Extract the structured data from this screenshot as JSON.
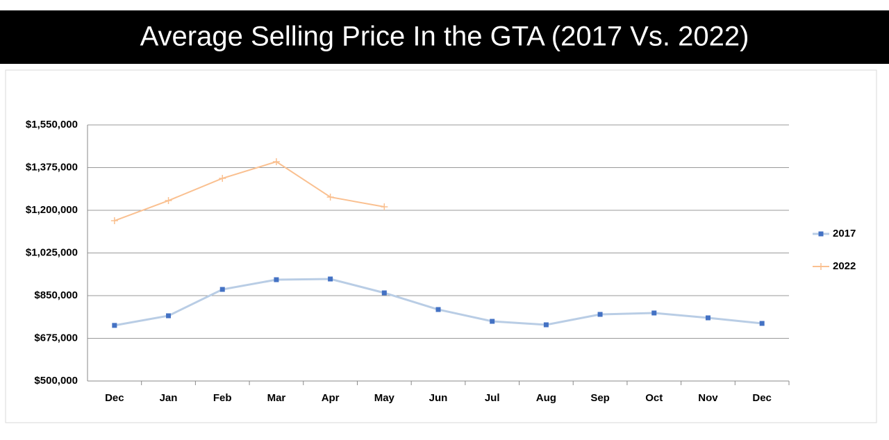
{
  "chart_data": {
    "type": "line",
    "title": "Average Selling Price In the GTA (2017 Vs. 2022)",
    "categories": [
      "Dec",
      "Jan",
      "Feb",
      "Mar",
      "Apr",
      "May",
      "Jun",
      "Jul",
      "Aug",
      "Sep",
      "Oct",
      "Nov",
      "Dec"
    ],
    "series": [
      {
        "name": "2017",
        "color": "#b9cde5",
        "marker_color": "#4472c4",
        "marker": "square",
        "values": [
          728000,
          767500,
          875600,
          915400,
          918300,
          861400,
          793100,
          744700,
          730500,
          773200,
          778900,
          759000,
          736200
        ]
      },
      {
        "name": "2022",
        "color": "#fac090",
        "marker_color": "#fac090",
        "marker": "plus",
        "values": [
          1157300,
          1239800,
          1330900,
          1399200,
          1254100,
          1214200,
          null,
          null,
          null,
          null,
          null,
          null,
          null
        ]
      }
    ],
    "ylim": [
      500000,
      1550000
    ],
    "yticks": [
      {
        "value": 500000,
        "label": "$500,000"
      },
      {
        "value": 675000,
        "label": "$675,000"
      },
      {
        "value": 850000,
        "label": "$850,000"
      },
      {
        "value": 1025000,
        "label": "$1,025,000"
      },
      {
        "value": 1200000,
        "label": "$1,200,000"
      },
      {
        "value": 1375000,
        "label": "$1,375,000"
      },
      {
        "value": 1550000,
        "label": "$1,550,000"
      }
    ],
    "grid": true,
    "legend": "right"
  }
}
